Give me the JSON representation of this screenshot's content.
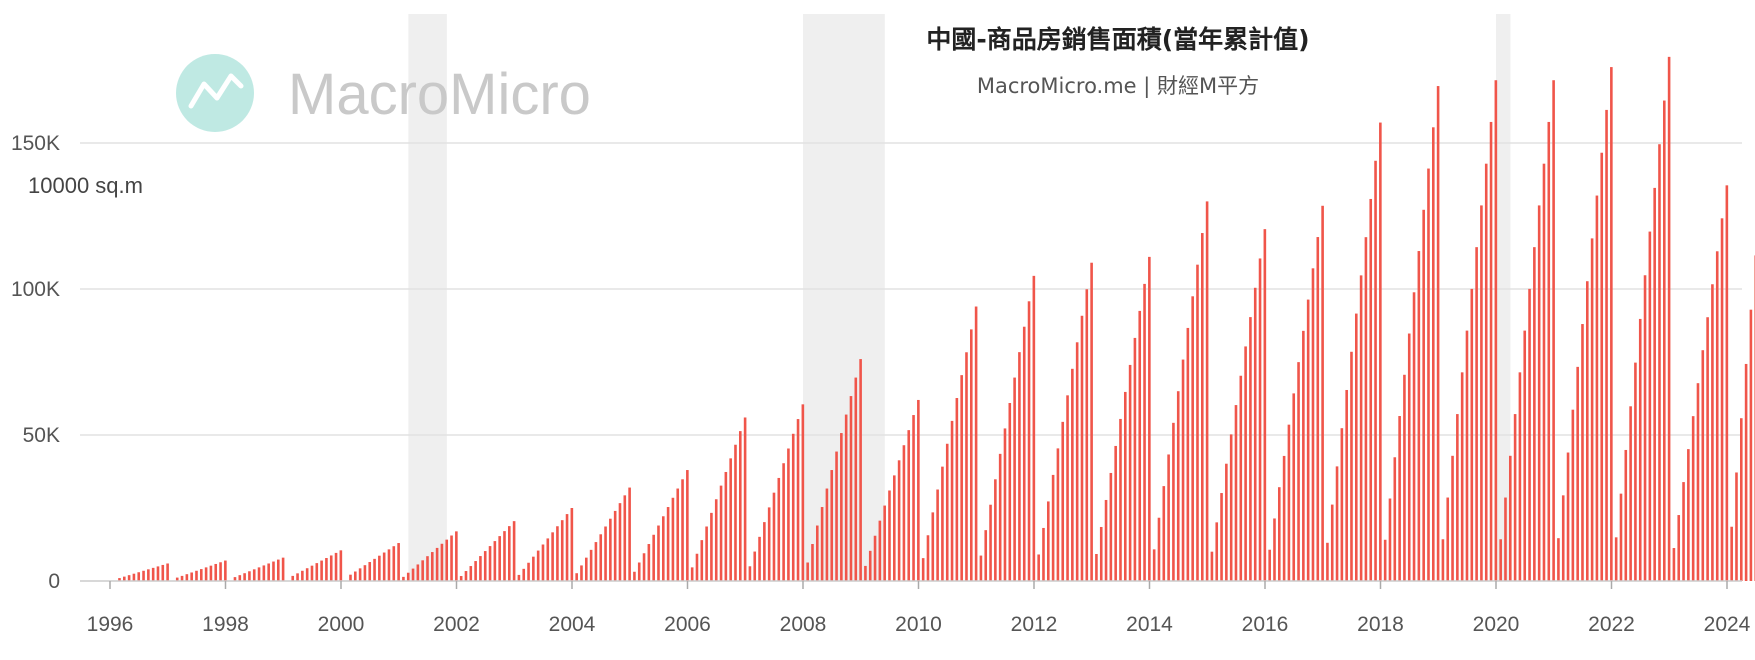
{
  "chart_data": {
    "type": "bar",
    "title": "中國-商品房銷售面積(當年累計值)",
    "subtitle": "MacroMicro.me | 財經M平方",
    "ylabel": "10000 sq.m",
    "watermark": "MacroMicro",
    "ylim": [
      0,
      190000
    ],
    "y_ticks": [
      {
        "value": 0,
        "label": "0"
      },
      {
        "value": 50000,
        "label": "50K"
      },
      {
        "value": 100000,
        "label": "100K"
      },
      {
        "value": 150000,
        "label": "150K"
      }
    ],
    "x_ticks": [
      "1996",
      "1998",
      "2000",
      "2002",
      "2004",
      "2006",
      "2008",
      "2010",
      "2012",
      "2014",
      "2016",
      "2018",
      "2020",
      "2022",
      "2024"
    ],
    "x_range": [
      "1996-01",
      "2024-06"
    ],
    "bar_color": "#f0554a",
    "shaded_periods": [
      {
        "start": "2001-03",
        "end": "2001-11"
      },
      {
        "start": "2008-01",
        "end": "2009-06"
      },
      {
        "start": "2020-01",
        "end": "2020-04"
      }
    ],
    "series": [
      {
        "values_by_year": {
          "1996": {
            "year_end": 6000
          },
          "1997": {
            "year_end": 7000
          },
          "1998": {
            "year_end": 8000
          },
          "1999": {
            "year_end": 10500
          },
          "2000": {
            "year_end": 13000
          },
          "2001": {
            "year_end": 17000
          },
          "2002": {
            "year_end": 20500
          },
          "2003": {
            "year_end": 25000
          },
          "2004": {
            "year_end": 32000
          },
          "2005": {
            "year_end": 38000
          },
          "2006": {
            "year_end": 56000
          },
          "2007": {
            "year_end": 60500
          },
          "2008": {
            "year_end": 76000
          },
          "2009": {
            "year_end": 62000
          },
          "2010": {
            "year_end": 94000
          },
          "2011": {
            "year_end": 104500
          },
          "2012": {
            "year_end": 109000
          },
          "2013": {
            "year_end": 111000
          },
          "2014": {
            "year_end": 130000
          },
          "2015": {
            "year_end": 120500
          },
          "2016": {
            "year_end": 128500
          },
          "2017": {
            "year_end": 157000
          },
          "2018": {
            "year_end": 169500
          },
          "2019": {
            "year_end": 171500
          },
          "2020": {
            "year_end": 171500
          },
          "2021": {
            "year_end": 176000
          },
          "2022": {
            "year_end": 179500
          },
          "2023": {
            "year_end": 135500
          },
          "2024": {
            "latest": 111500
          }
        }
      }
    ]
  }
}
